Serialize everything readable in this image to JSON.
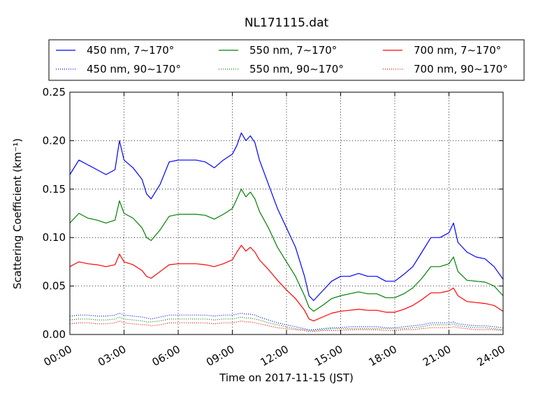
{
  "chart_data": {
    "type": "line",
    "title": "NL171115.dat",
    "xlabel": "Time on 2017-11-15 (JST)",
    "ylabel": "Scattering Coefficient (km⁻¹)",
    "x_unit": "hours",
    "xlim": [
      0,
      24
    ],
    "ylim": [
      0,
      0.25
    ],
    "grid": true,
    "legend_position": "top",
    "x_ticks": [
      0,
      3,
      6,
      9,
      12,
      15,
      18,
      21,
      24
    ],
    "x_tick_labels": [
      "00:00",
      "03:00",
      "06:00",
      "09:00",
      "12:00",
      "15:00",
      "18:00",
      "21:00",
      "24:00"
    ],
    "y_ticks": [
      0,
      0.05,
      0.1,
      0.15,
      0.2,
      0.25
    ],
    "y_tick_labels": [
      "0.00",
      "0.05",
      "0.10",
      "0.15",
      "0.20",
      "0.25"
    ],
    "x": [
      0,
      0.5,
      1,
      1.5,
      2,
      2.5,
      2.75,
      3,
      3.5,
      4,
      4.25,
      4.5,
      5,
      5.5,
      6,
      6.5,
      7,
      7.5,
      8,
      8.5,
      9,
      9.25,
      9.5,
      9.75,
      10,
      10.25,
      10.5,
      11,
      11.5,
      12,
      12.5,
      13,
      13.25,
      13.5,
      14,
      14.5,
      15,
      15.5,
      16,
      16.5,
      17,
      17.5,
      18,
      18.5,
      19,
      19.5,
      20,
      20.5,
      21,
      21.25,
      21.5,
      22,
      22.5,
      23,
      23.5,
      24
    ],
    "series": [
      {
        "name": "450 nm, 7∼170°",
        "color": "#0000ff",
        "style": "solid",
        "values": [
          0.165,
          0.18,
          0.175,
          0.17,
          0.165,
          0.17,
          0.2,
          0.18,
          0.172,
          0.16,
          0.145,
          0.14,
          0.155,
          0.178,
          0.18,
          0.18,
          0.18,
          0.178,
          0.172,
          0.18,
          0.186,
          0.195,
          0.208,
          0.2,
          0.205,
          0.198,
          0.18,
          0.155,
          0.13,
          0.11,
          0.09,
          0.06,
          0.04,
          0.035,
          0.045,
          0.055,
          0.06,
          0.06,
          0.063,
          0.06,
          0.06,
          0.055,
          0.055,
          0.062,
          0.07,
          0.085,
          0.1,
          0.1,
          0.105,
          0.115,
          0.095,
          0.085,
          0.08,
          0.078,
          0.07,
          0.057
        ]
      },
      {
        "name": "550 nm, 7∼170°",
        "color": "#008000",
        "style": "solid",
        "values": [
          0.115,
          0.125,
          0.12,
          0.118,
          0.115,
          0.118,
          0.138,
          0.125,
          0.12,
          0.11,
          0.1,
          0.097,
          0.108,
          0.122,
          0.124,
          0.124,
          0.124,
          0.123,
          0.119,
          0.124,
          0.13,
          0.14,
          0.15,
          0.142,
          0.147,
          0.14,
          0.127,
          0.11,
          0.09,
          0.075,
          0.06,
          0.04,
          0.028,
          0.024,
          0.03,
          0.037,
          0.04,
          0.042,
          0.044,
          0.042,
          0.042,
          0.038,
          0.038,
          0.042,
          0.048,
          0.058,
          0.07,
          0.07,
          0.073,
          0.08,
          0.065,
          0.056,
          0.055,
          0.054,
          0.05,
          0.04
        ]
      },
      {
        "name": "700 nm, 7∼170°",
        "color": "#ff0000",
        "style": "solid",
        "values": [
          0.07,
          0.075,
          0.073,
          0.072,
          0.07,
          0.072,
          0.083,
          0.075,
          0.072,
          0.066,
          0.06,
          0.058,
          0.065,
          0.072,
          0.073,
          0.073,
          0.073,
          0.072,
          0.07,
          0.073,
          0.077,
          0.085,
          0.092,
          0.086,
          0.09,
          0.085,
          0.077,
          0.067,
          0.056,
          0.046,
          0.037,
          0.025,
          0.016,
          0.014,
          0.018,
          0.022,
          0.024,
          0.025,
          0.026,
          0.025,
          0.025,
          0.023,
          0.023,
          0.026,
          0.03,
          0.036,
          0.043,
          0.043,
          0.045,
          0.048,
          0.04,
          0.034,
          0.033,
          0.032,
          0.03,
          0.024
        ]
      },
      {
        "name": "450 nm, 90∼170°",
        "color": "#0000ff",
        "style": "dotted",
        "values": [
          0.019,
          0.02,
          0.02,
          0.019,
          0.019,
          0.02,
          0.022,
          0.02,
          0.019,
          0.018,
          0.017,
          0.016,
          0.018,
          0.02,
          0.02,
          0.02,
          0.02,
          0.02,
          0.019,
          0.02,
          0.02,
          0.021,
          0.022,
          0.021,
          0.021,
          0.02,
          0.018,
          0.015,
          0.012,
          0.01,
          0.008,
          0.006,
          0.005,
          0.005,
          0.006,
          0.007,
          0.007,
          0.008,
          0.008,
          0.008,
          0.008,
          0.007,
          0.007,
          0.008,
          0.009,
          0.01,
          0.012,
          0.012,
          0.012,
          0.013,
          0.011,
          0.01,
          0.009,
          0.009,
          0.008,
          0.007
        ]
      },
      {
        "name": "550 nm, 90∼170°",
        "color": "#008000",
        "style": "dotted",
        "values": [
          0.015,
          0.016,
          0.016,
          0.015,
          0.015,
          0.016,
          0.018,
          0.016,
          0.015,
          0.014,
          0.013,
          0.013,
          0.014,
          0.016,
          0.016,
          0.016,
          0.016,
          0.016,
          0.015,
          0.016,
          0.016,
          0.017,
          0.018,
          0.017,
          0.017,
          0.016,
          0.015,
          0.012,
          0.01,
          0.008,
          0.006,
          0.005,
          0.004,
          0.004,
          0.005,
          0.006,
          0.006,
          0.006,
          0.006,
          0.006,
          0.006,
          0.006,
          0.006,
          0.006,
          0.007,
          0.008,
          0.01,
          0.01,
          0.01,
          0.011,
          0.009,
          0.008,
          0.007,
          0.007,
          0.006,
          0.005
        ]
      },
      {
        "name": "700 nm, 90∼170°",
        "color": "#ff0000",
        "style": "dotted",
        "values": [
          0.011,
          0.012,
          0.012,
          0.011,
          0.011,
          0.012,
          0.014,
          0.012,
          0.011,
          0.01,
          0.01,
          0.009,
          0.01,
          0.012,
          0.012,
          0.012,
          0.012,
          0.012,
          0.011,
          0.012,
          0.012,
          0.013,
          0.014,
          0.013,
          0.013,
          0.012,
          0.011,
          0.009,
          0.007,
          0.006,
          0.005,
          0.004,
          0.003,
          0.003,
          0.004,
          0.004,
          0.004,
          0.005,
          0.005,
          0.005,
          0.005,
          0.004,
          0.004,
          0.005,
          0.005,
          0.006,
          0.007,
          0.007,
          0.007,
          0.008,
          0.007,
          0.006,
          0.005,
          0.005,
          0.005,
          0.004
        ]
      }
    ]
  }
}
